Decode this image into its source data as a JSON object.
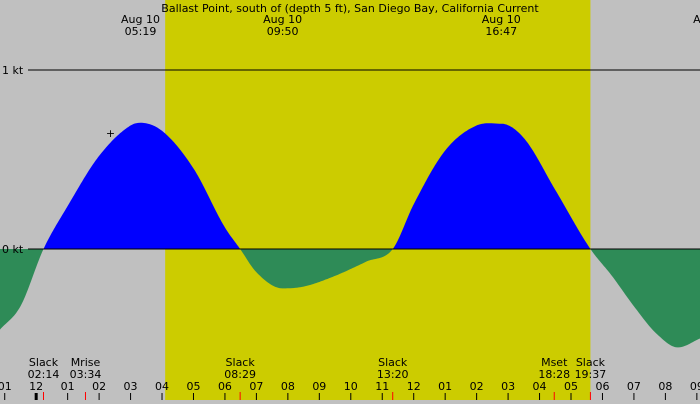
{
  "chart_data": {
    "type": "area",
    "title": "Ballast Point, south of (depth 5 ft), San Diego Bay, California Current",
    "y_unit": "kt",
    "y_ticks": [
      {
        "value": 1,
        "label": "1 kt"
      },
      {
        "value": 0,
        "label": "0 kt"
      }
    ],
    "ylim": [
      -0.65,
      1.4
    ],
    "xlim": [
      0.85,
      23.1
    ],
    "daylight": [
      6.1,
      19.617
    ],
    "x_tick_labels": [
      {
        "hour": 1,
        "label": "01"
      },
      {
        "hour": 2,
        "label": "12"
      },
      {
        "hour": 3,
        "label": "01"
      },
      {
        "hour": 4,
        "label": "02"
      },
      {
        "hour": 5,
        "label": "03"
      },
      {
        "hour": 6,
        "label": "04"
      },
      {
        "hour": 7,
        "label": "05"
      },
      {
        "hour": 8,
        "label": "06"
      },
      {
        "hour": 9,
        "label": "07"
      },
      {
        "hour": 10,
        "label": "08"
      },
      {
        "hour": 11,
        "label": "09"
      },
      {
        "hour": 12,
        "label": "10"
      },
      {
        "hour": 13,
        "label": "11"
      },
      {
        "hour": 14,
        "label": "12"
      },
      {
        "hour": 15,
        "label": "01"
      },
      {
        "hour": 16,
        "label": "02"
      },
      {
        "hour": 17,
        "label": "03"
      },
      {
        "hour": 18,
        "label": "04"
      },
      {
        "hour": 19,
        "label": "05"
      },
      {
        "hour": 20,
        "label": "06"
      },
      {
        "hour": 21,
        "label": "07"
      },
      {
        "hour": 22,
        "label": "08"
      },
      {
        "hour": 23,
        "label": "09"
      }
    ],
    "top_events": [
      {
        "hour": 5.317,
        "date": "Aug 10",
        "time": "05:19"
      },
      {
        "hour": 9.833,
        "date": "Aug 10",
        "time": "09:50"
      },
      {
        "hour": 16.783,
        "date": "Aug 10",
        "time": "16:47"
      },
      {
        "hour": 23.0,
        "date": "A",
        "time": ""
      }
    ],
    "bottom_events": [
      {
        "hour": 2.233,
        "name": "Slack",
        "time": "02:14"
      },
      {
        "hour": 3.567,
        "name": "Mrise",
        "time": "03:34"
      },
      {
        "hour": 8.483,
        "name": "Slack",
        "time": "08:29"
      },
      {
        "hour": 13.333,
        "name": "Slack",
        "time": "13:20"
      },
      {
        "hour": 18.467,
        "name": "Mset",
        "time": "18:28"
      },
      {
        "hour": 19.617,
        "name": "Slack",
        "time": "19:37"
      }
    ],
    "series": [
      {
        "x": [
          0.85,
          1.5,
          2.233,
          3.0,
          4.0,
          5.0,
          5.317,
          6.0,
          7.0,
          8.0,
          8.483,
          9.0,
          9.833,
          10.5,
          11.5,
          12.5,
          13.333,
          14.0,
          15.0,
          16.0,
          16.783,
          17.5,
          18.5,
          19.617,
          20.3,
          21.0,
          21.7,
          22.4,
          23.1
        ],
        "y": [
          -0.45,
          -0.32,
          0.0,
          0.24,
          0.52,
          0.69,
          0.705,
          0.66,
          0.45,
          0.12,
          0.0,
          -0.13,
          -0.22,
          -0.21,
          -0.15,
          -0.07,
          0.0,
          0.25,
          0.55,
          0.69,
          0.7,
          0.62,
          0.33,
          0.0,
          -0.15,
          -0.32,
          -0.47,
          -0.55,
          -0.5
        ]
      }
    ],
    "colors": {
      "background": "#c0c0c0",
      "daylight": "#cccc00",
      "flood": "#0000ff",
      "ebb": "#2e8b57",
      "tick_marker": "#ff0000"
    }
  }
}
